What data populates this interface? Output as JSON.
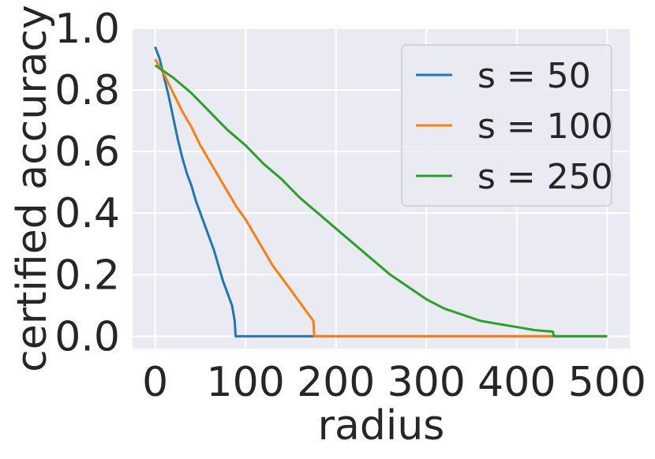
{
  "chart_data": {
    "type": "line",
    "title": "",
    "xlabel": "radius",
    "ylabel": "certified accuracy",
    "xlim": [
      -25,
      525
    ],
    "ylim": [
      -0.04,
      1.0
    ],
    "xticks": [
      0,
      100,
      200,
      300,
      400,
      500
    ],
    "xtick_labels": [
      "0",
      "100",
      "200",
      "300",
      "400",
      "500"
    ],
    "yticks": [
      0.0,
      0.2,
      0.4,
      0.6,
      0.8,
      1.0
    ],
    "ytick_labels": [
      "0.0",
      "0.2",
      "0.4",
      "0.6",
      "0.8",
      "1.0"
    ],
    "grid": true,
    "legend_position": "upper-right",
    "background": "#eaeaf2",
    "series": [
      {
        "name": "s = 50",
        "color": "#1f77b4",
        "points": [
          [
            0,
            0.94
          ],
          [
            5,
            0.9
          ],
          [
            10,
            0.84
          ],
          [
            15,
            0.78
          ],
          [
            20,
            0.71
          ],
          [
            25,
            0.64
          ],
          [
            30,
            0.58
          ],
          [
            35,
            0.53
          ],
          [
            40,
            0.49
          ],
          [
            45,
            0.44
          ],
          [
            50,
            0.4
          ],
          [
            55,
            0.36
          ],
          [
            60,
            0.32
          ],
          [
            65,
            0.28
          ],
          [
            70,
            0.23
          ],
          [
            75,
            0.18
          ],
          [
            80,
            0.14
          ],
          [
            85,
            0.1
          ],
          [
            88,
            0.05
          ],
          [
            89,
            0.0
          ],
          [
            500,
            0.0
          ]
        ]
      },
      {
        "name": "s = 100",
        "color": "#ff7f0e",
        "points": [
          [
            0,
            0.9
          ],
          [
            10,
            0.85
          ],
          [
            20,
            0.79
          ],
          [
            30,
            0.73
          ],
          [
            40,
            0.68
          ],
          [
            50,
            0.62
          ],
          [
            60,
            0.57
          ],
          [
            70,
            0.52
          ],
          [
            80,
            0.47
          ],
          [
            90,
            0.42
          ],
          [
            100,
            0.38
          ],
          [
            110,
            0.33
          ],
          [
            120,
            0.28
          ],
          [
            130,
            0.23
          ],
          [
            140,
            0.19
          ],
          [
            150,
            0.15
          ],
          [
            160,
            0.11
          ],
          [
            170,
            0.07
          ],
          [
            175,
            0.05
          ],
          [
            176,
            0.0
          ],
          [
            500,
            0.0
          ]
        ]
      },
      {
        "name": "s = 250",
        "color": "#2ca02c",
        "points": [
          [
            0,
            0.88
          ],
          [
            20,
            0.84
          ],
          [
            40,
            0.79
          ],
          [
            60,
            0.73
          ],
          [
            80,
            0.67
          ],
          [
            100,
            0.62
          ],
          [
            120,
            0.56
          ],
          [
            140,
            0.51
          ],
          [
            160,
            0.45
          ],
          [
            180,
            0.4
          ],
          [
            200,
            0.35
          ],
          [
            220,
            0.3
          ],
          [
            240,
            0.25
          ],
          [
            260,
            0.2
          ],
          [
            280,
            0.16
          ],
          [
            300,
            0.12
          ],
          [
            320,
            0.09
          ],
          [
            340,
            0.07
          ],
          [
            360,
            0.05
          ],
          [
            380,
            0.04
          ],
          [
            400,
            0.03
          ],
          [
            420,
            0.02
          ],
          [
            440,
            0.015
          ],
          [
            441,
            0.0
          ],
          [
            500,
            0.0
          ]
        ]
      }
    ]
  }
}
